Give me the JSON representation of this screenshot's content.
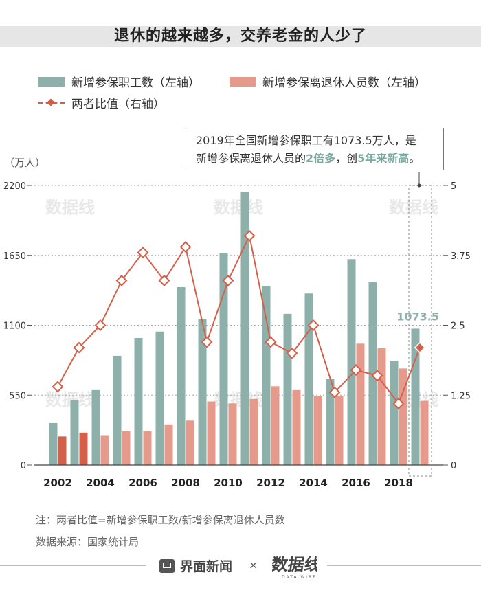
{
  "title": "退休的越来越多，交养老金的人少了",
  "legend": {
    "workers": "新增参保职工数（左轴）",
    "retirees": "新增参保离退休人员数（左轴）",
    "ratio": "两者比值（右轴）"
  },
  "callout": {
    "line1": "2019年全国新增参保职工有1073.5万人，是",
    "line2_a": "新增参保离退休人员的",
    "line2_h1": "2倍多",
    "line2_b": "，创",
    "line2_h2": "5年来新高",
    "line2_c": "。"
  },
  "unit_label": "（万人）",
  "note": "注：两者比值=新增参保职工数/新增参保离退休人员数",
  "source": "数据来源：国家统计局",
  "footer": {
    "brand": "界面新闻",
    "times": "×"
  },
  "watermark": "数据线",
  "colors": {
    "workers": "#8db0aa",
    "retirees": "#e69a8b",
    "retirees_early": "#d5604a",
    "ratio": "#d5604a",
    "grid": "#aaaaaa"
  },
  "chart_data": {
    "type": "bar",
    "x": [
      2002,
      2003,
      2004,
      2005,
      2006,
      2007,
      2008,
      2009,
      2010,
      2011,
      2012,
      2013,
      2014,
      2015,
      2016,
      2017,
      2018,
      2019
    ],
    "x_tick_labels": [
      "2002",
      "2004",
      "2006",
      "2008",
      "2010",
      "2012",
      "2014",
      "2016",
      "2018"
    ],
    "series": [
      {
        "name": "新增参保职工数（左轴）",
        "axis": "left",
        "type": "bar",
        "values": [
          330,
          510,
          590,
          860,
          1000,
          1050,
          1400,
          1150,
          1670,
          2150,
          1410,
          1190,
          1350,
          680,
          1620,
          1440,
          820,
          1073.5
        ]
      },
      {
        "name": "新增参保离退休人员数（左轴）",
        "axis": "left",
        "type": "bar",
        "values": [
          225,
          255,
          235,
          265,
          265,
          320,
          350,
          500,
          485,
          520,
          620,
          590,
          545,
          545,
          955,
          920,
          760,
          505
        ]
      },
      {
        "name": "两者比值（右轴）",
        "axis": "right",
        "type": "line",
        "values": [
          1.4,
          2.1,
          2.5,
          3.3,
          3.8,
          3.3,
          3.9,
          2.2,
          3.3,
          4.1,
          2.2,
          2.0,
          2.5,
          1.3,
          1.7,
          1.6,
          1.1,
          2.1
        ]
      }
    ],
    "y_left": {
      "min": 0,
      "max": 2200,
      "ticks": [
        0,
        550,
        1100,
        1650,
        2200
      ],
      "label": "（万人）"
    },
    "y_right": {
      "min": 0,
      "max": 5,
      "ticks": [
        0,
        1.25,
        2.5,
        3.75,
        5
      ],
      "tick_labels": [
        "0",
        "1.25",
        "2.5",
        "3.75",
        "5"
      ]
    },
    "annotation": {
      "x": 2019,
      "text": "1073.5"
    },
    "grid": "horizontal dashed",
    "legend_position": "top-left"
  }
}
